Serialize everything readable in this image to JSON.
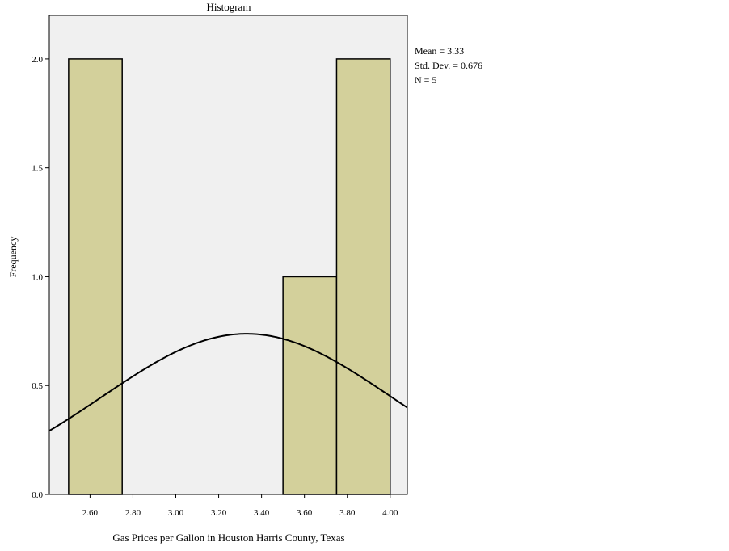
{
  "chart_data": {
    "type": "bar",
    "title": "Histogram",
    "xlabel": "Gas Prices per Gallon in Houston Harris County, Texas",
    "ylabel": "Frequency",
    "bins": [
      {
        "start": 2.5,
        "end": 2.75,
        "count": 2
      },
      {
        "start": 2.75,
        "end": 3.0,
        "count": 0
      },
      {
        "start": 3.0,
        "end": 3.25,
        "count": 0
      },
      {
        "start": 3.25,
        "end": 3.5,
        "count": 0
      },
      {
        "start": 3.5,
        "end": 3.75,
        "count": 1
      },
      {
        "start": 3.75,
        "end": 4.0,
        "count": 2
      }
    ],
    "xlim": [
      2.41,
      4.08
    ],
    "ylim": [
      0,
      2.2
    ],
    "x_ticks": [
      "2.60",
      "2.80",
      "3.00",
      "3.20",
      "3.40",
      "3.60",
      "3.80",
      "4.00"
    ],
    "y_ticks": [
      "0.0",
      "0.5",
      "1.0",
      "1.5",
      "2.0"
    ],
    "normal_curve": {
      "mean": 3.33,
      "sd": 0.676,
      "n": 5,
      "bin_width": 0.25
    },
    "stats": {
      "mean": "Mean = 3.33",
      "std_dev": "Std. Dev. = 0.676",
      "n": "N = 5"
    },
    "colors": {
      "bar_fill": "#d3d09b",
      "bar_stroke": "#000000",
      "plot_background": "#f0f0f0",
      "curve": "#000000"
    },
    "grid": false
  }
}
